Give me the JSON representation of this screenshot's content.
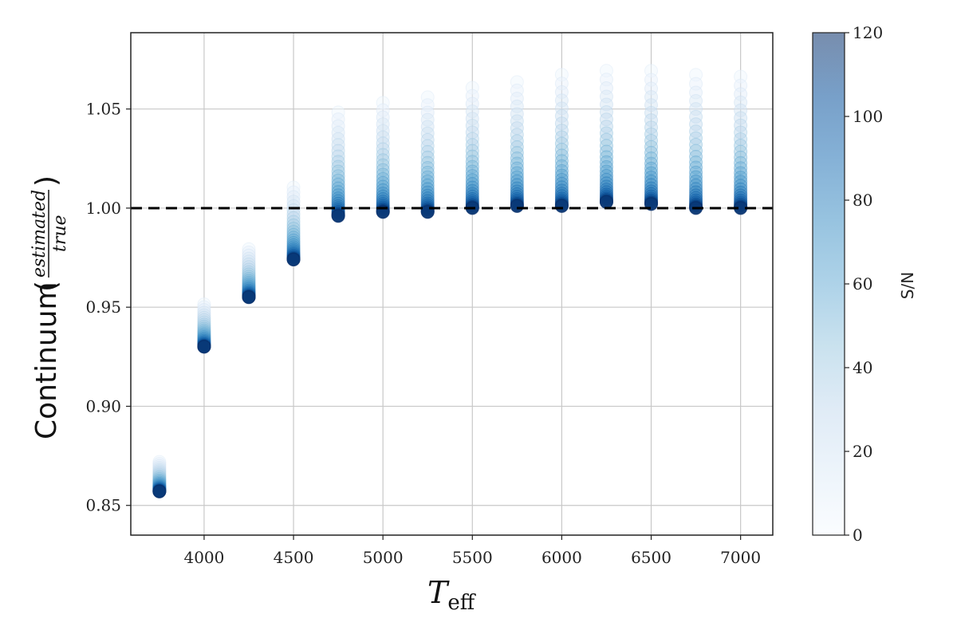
{
  "chart_data": {
    "type": "scatter",
    "title": "",
    "xlabel": "T",
    "xlabel_subscript": "eff",
    "ylabel": "Continuum",
    "ylabel_fraction": {
      "numerator": "estimated",
      "denominator": "true"
    },
    "xlim": [
      3590,
      7180
    ],
    "ylim": [
      0.835,
      1.0885
    ],
    "xticks": [
      4000,
      4500,
      5000,
      5500,
      6000,
      6500,
      7000
    ],
    "yticks": [
      0.85,
      0.9,
      0.95,
      1.0,
      1.05
    ],
    "ytick_labels": [
      "0.85",
      "0.90",
      "0.95",
      "1.00",
      "1.05"
    ],
    "grid": true,
    "reference_line": {
      "y": 1.0,
      "style": "dashed",
      "color": "#000000"
    },
    "colorbar": {
      "label": "S/N",
      "range": [
        0,
        120
      ],
      "ticks": [
        0,
        20,
        40,
        60,
        80,
        100,
        120
      ],
      "colormap": "Blues"
    },
    "marker_alpha": 0.5,
    "series": [
      {
        "teff": 3750,
        "cont_at_max_sn": 0.857,
        "cont_at_min_sn": 0.873
      },
      {
        "teff": 4000,
        "cont_at_max_sn": 0.93,
        "cont_at_min_sn": 0.953
      },
      {
        "teff": 4250,
        "cont_at_max_sn": 0.955,
        "cont_at_min_sn": 0.981
      },
      {
        "teff": 4500,
        "cont_at_max_sn": 0.974,
        "cont_at_min_sn": 1.013
      },
      {
        "teff": 4750,
        "cont_at_max_sn": 0.996,
        "cont_at_min_sn": 1.052
      },
      {
        "teff": 5000,
        "cont_at_max_sn": 0.998,
        "cont_at_min_sn": 1.057
      },
      {
        "teff": 5250,
        "cont_at_max_sn": 0.998,
        "cont_at_min_sn": 1.06
      },
      {
        "teff": 5500,
        "cont_at_max_sn": 1.0,
        "cont_at_min_sn": 1.065
      },
      {
        "teff": 5750,
        "cont_at_max_sn": 1.001,
        "cont_at_min_sn": 1.068
      },
      {
        "teff": 6000,
        "cont_at_max_sn": 1.001,
        "cont_at_min_sn": 1.072
      },
      {
        "teff": 6250,
        "cont_at_max_sn": 1.003,
        "cont_at_min_sn": 1.074
      },
      {
        "teff": 6500,
        "cont_at_max_sn": 1.002,
        "cont_at_min_sn": 1.074
      },
      {
        "teff": 6750,
        "cont_at_max_sn": 1.0,
        "cont_at_min_sn": 1.072
      },
      {
        "teff": 7000,
        "cont_at_max_sn": 1.0,
        "cont_at_min_sn": 1.071
      }
    ]
  }
}
